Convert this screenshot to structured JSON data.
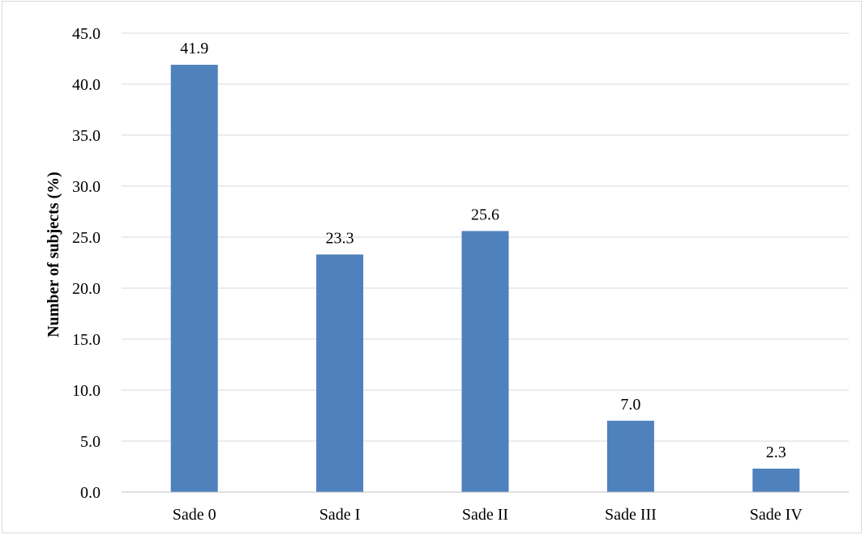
{
  "chart_data": {
    "type": "bar",
    "categories": [
      "Sade 0",
      "Sade I",
      "Sade II",
      "Sade III",
      "Sade IV"
    ],
    "values": [
      41.9,
      23.3,
      25.6,
      7.0,
      2.3
    ],
    "data_labels": [
      "41.9",
      "23.3",
      "25.6",
      "7.0",
      "2.3"
    ],
    "ylabel": "Number of subjects (%)",
    "xlabel": "",
    "ylim": [
      0,
      45
    ],
    "yticks": [
      "0.0",
      "5.0",
      "10.0",
      "15.0",
      "20.0",
      "25.0",
      "30.0",
      "35.0",
      "40.0",
      "45.0"
    ],
    "grid": "horizontal",
    "bar_color": "#4f81bd",
    "grid_color": "#d9d9d9",
    "axis_color": "#bfbfbf"
  }
}
